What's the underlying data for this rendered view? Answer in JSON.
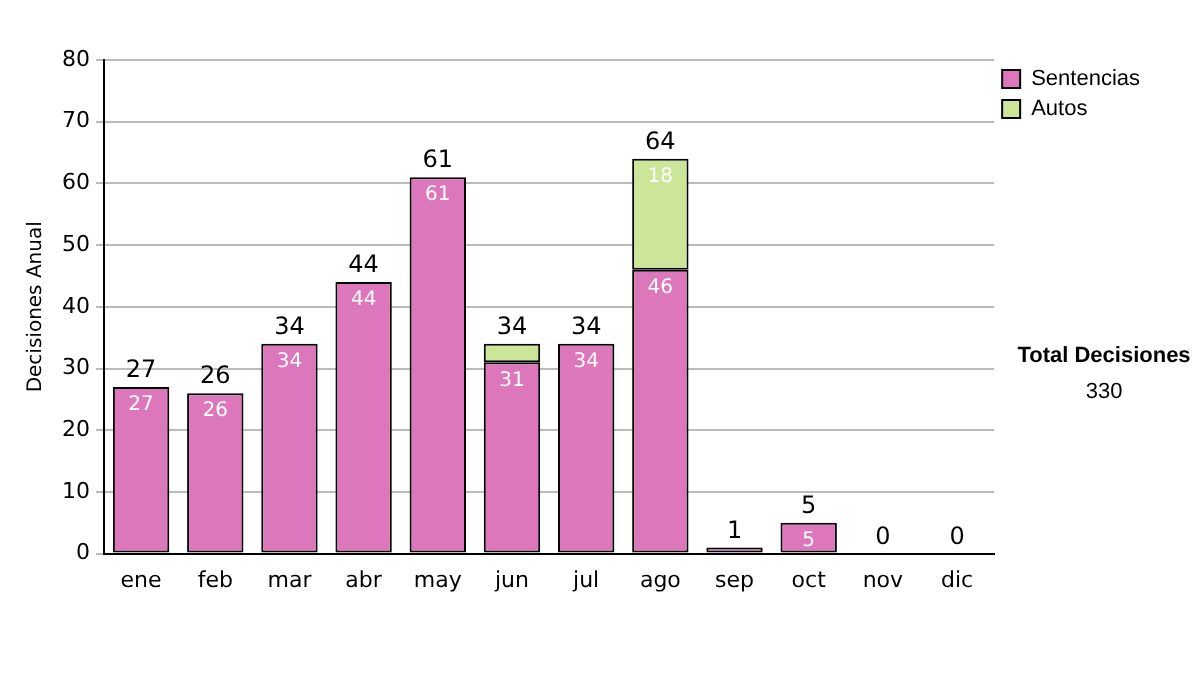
{
  "chart_data": {
    "type": "bar",
    "stacked": true,
    "ylabel": "Decisiones Anual",
    "categories": [
      "ene",
      "feb",
      "mar",
      "abr",
      "may",
      "jun",
      "jul",
      "ago",
      "sep",
      "oct",
      "nov",
      "dic"
    ],
    "series": [
      {
        "name": "Sentencias",
        "color": "#dd77bb",
        "values": [
          27,
          26,
          34,
          44,
          61,
          31,
          34,
          46,
          1,
          5,
          0,
          0
        ],
        "value_labels": [
          "27",
          "26",
          "34",
          "44",
          "61",
          "31",
          "34",
          "46",
          null,
          "5",
          null,
          null
        ]
      },
      {
        "name": "Autos",
        "color": "#cce699",
        "values": [
          0,
          0,
          0,
          0,
          0,
          3,
          0,
          18,
          0,
          0,
          0,
          0
        ],
        "value_labels": [
          null,
          null,
          null,
          null,
          null,
          null,
          null,
          "18",
          null,
          null,
          null,
          null
        ]
      }
    ],
    "totals": [
      "27",
      "26",
      "34",
      "44",
      "61",
      "34",
      "34",
      "64",
      "1",
      "5",
      "0",
      "0"
    ],
    "ylim": [
      0,
      80
    ],
    "yticks": [
      0,
      10,
      20,
      30,
      40,
      50,
      60,
      70,
      80
    ],
    "grid": "y",
    "legend": "right",
    "annotations": [
      "Total Decisiones",
      "330"
    ]
  }
}
